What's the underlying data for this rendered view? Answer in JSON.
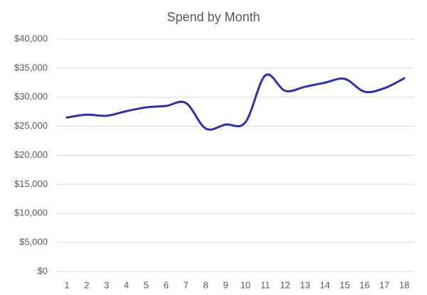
{
  "chart_data": {
    "type": "line",
    "title": "Spend by Month",
    "categories": [
      "1",
      "2",
      "3",
      "4",
      "5",
      "6",
      "7",
      "8",
      "9",
      "10",
      "11",
      "12",
      "13",
      "14",
      "15",
      "16",
      "17",
      "18"
    ],
    "series": [
      {
        "color": "#2e31a6",
        "values": [
          26500,
          27000,
          26800,
          27600,
          28250,
          28500,
          29000,
          24600,
          25300,
          25700,
          33750,
          31100,
          31800,
          32500,
          33150,
          30950,
          31550,
          33250
        ]
      }
    ],
    "ylim": [
      0,
      40000
    ],
    "yticks": [
      {
        "value": 0,
        "label": "$0"
      },
      {
        "value": 5000,
        "label": "$5,000"
      },
      {
        "value": 10000,
        "label": "$10,000"
      },
      {
        "value": 15000,
        "label": "$15,000"
      },
      {
        "value": 20000,
        "label": "$20,000"
      },
      {
        "value": 25000,
        "label": "$25,000"
      },
      {
        "value": 30000,
        "label": "$30,000"
      },
      {
        "value": 35000,
        "label": "$35,000"
      },
      {
        "value": 40000,
        "label": "$40,000"
      }
    ],
    "grid": true,
    "smooth": true
  }
}
